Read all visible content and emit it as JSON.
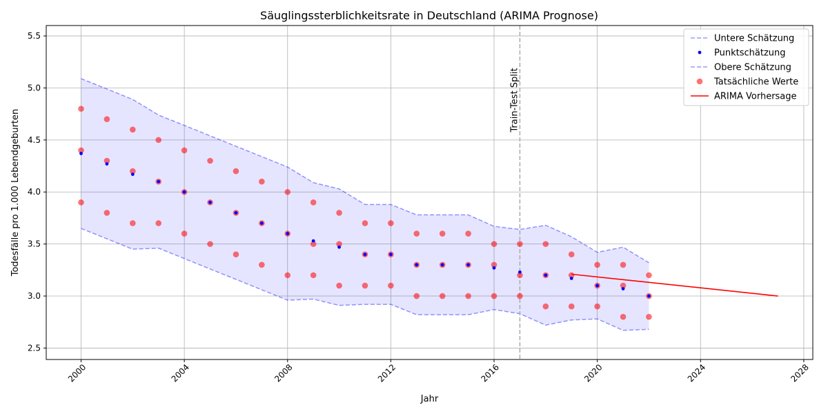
{
  "chart_data": {
    "type": "scatter",
    "title": "Säuglingssterblichkeitsrate in Deutschland (ARIMA Prognose)",
    "xlabel": "Jahr",
    "ylabel": "Todesfälle pro 1.000 Lebendgeburten",
    "xlim": [
      1998.65,
      2028.35
    ],
    "ylim": [
      2.39,
      5.6
    ],
    "xticks": [
      2000,
      2004,
      2008,
      2012,
      2016,
      2020,
      2024,
      2028
    ],
    "yticks": [
      2.5,
      3.0,
      3.5,
      4.0,
      4.5,
      5.0,
      5.5
    ],
    "ytick_labels": [
      "2.5",
      "3.0",
      "3.5",
      "4.0",
      "4.5",
      "5.0",
      "5.5"
    ],
    "grid": true,
    "legend_position": "top-right",
    "annotation": {
      "text": "Train-Test Split",
      "x": 2017
    },
    "colors": {
      "band": "#0000ff",
      "point": "#0000ff",
      "actual": "#ff0000",
      "forecast": "#ff0000",
      "split": "#aaaaaa",
      "grid": "#b0b0b0"
    },
    "series": [
      {
        "name": "Untere Schätzung",
        "kind": "dashed-line",
        "x": [
          2000,
          2001,
          2002,
          2003,
          2004,
          2005,
          2006,
          2007,
          2008,
          2009,
          2010,
          2011,
          2012,
          2013,
          2014,
          2015,
          2016,
          2017,
          2018,
          2019,
          2020,
          2021,
          2022
        ],
        "y": [
          3.65,
          3.55,
          3.45,
          3.46,
          3.36,
          3.26,
          3.16,
          3.06,
          2.96,
          2.97,
          2.91,
          2.92,
          2.92,
          2.82,
          2.82,
          2.82,
          2.87,
          2.83,
          2.72,
          2.77,
          2.78,
          2.67,
          2.68
        ]
      },
      {
        "name": "Punktschätzung",
        "kind": "point",
        "x": [
          2000,
          2001,
          2002,
          2003,
          2004,
          2005,
          2006,
          2007,
          2008,
          2009,
          2010,
          2011,
          2012,
          2013,
          2014,
          2015,
          2016,
          2017,
          2018,
          2019,
          2020,
          2021,
          2022
        ],
        "y": [
          4.37,
          4.27,
          4.17,
          4.1,
          4.0,
          3.9,
          3.8,
          3.7,
          3.6,
          3.53,
          3.47,
          3.4,
          3.4,
          3.3,
          3.3,
          3.3,
          3.27,
          3.23,
          3.2,
          3.17,
          3.1,
          3.07,
          3.0
        ]
      },
      {
        "name": "Obere Schätzung",
        "kind": "dashed-line",
        "x": [
          2000,
          2001,
          2002,
          2003,
          2004,
          2005,
          2006,
          2007,
          2008,
          2009,
          2010,
          2011,
          2012,
          2013,
          2014,
          2015,
          2016,
          2017,
          2018,
          2019,
          2020,
          2021,
          2022
        ],
        "y": [
          5.09,
          4.99,
          4.89,
          4.74,
          4.64,
          4.54,
          4.44,
          4.34,
          4.24,
          4.09,
          4.03,
          3.88,
          3.88,
          3.78,
          3.78,
          3.78,
          3.67,
          3.64,
          3.68,
          3.57,
          3.42,
          3.47,
          3.32
        ]
      },
      {
        "name": "Tatsächliche Werte",
        "kind": "scatter",
        "x": [
          2000,
          2000,
          2000,
          2001,
          2001,
          2001,
          2002,
          2002,
          2002,
          2003,
          2003,
          2003,
          2004,
          2004,
          2004,
          2005,
          2005,
          2005,
          2006,
          2006,
          2006,
          2007,
          2007,
          2007,
          2008,
          2008,
          2008,
          2009,
          2009,
          2009,
          2010,
          2010,
          2010,
          2011,
          2011,
          2011,
          2012,
          2012,
          2012,
          2013,
          2013,
          2013,
          2014,
          2014,
          2014,
          2015,
          2015,
          2015,
          2016,
          2016,
          2016,
          2017,
          2017,
          2017,
          2018,
          2018,
          2018,
          2019,
          2019,
          2019,
          2020,
          2020,
          2020,
          2021,
          2021,
          2021,
          2022,
          2022,
          2022
        ],
        "y": [
          4.8,
          4.4,
          3.9,
          4.7,
          4.3,
          3.8,
          4.6,
          4.2,
          3.7,
          4.5,
          4.1,
          3.7,
          4.4,
          4.0,
          3.6,
          4.3,
          3.9,
          3.5,
          4.2,
          3.8,
          3.4,
          4.1,
          3.7,
          3.3,
          4.0,
          3.6,
          3.2,
          3.9,
          3.5,
          3.2,
          3.8,
          3.5,
          3.1,
          3.7,
          3.4,
          3.1,
          3.7,
          3.4,
          3.1,
          3.6,
          3.3,
          3.0,
          3.6,
          3.3,
          3.0,
          3.6,
          3.3,
          3.0,
          3.5,
          3.3,
          3.0,
          3.5,
          3.2,
          3.0,
          3.5,
          3.2,
          2.9,
          3.4,
          3.2,
          2.9,
          3.3,
          3.1,
          2.9,
          3.3,
          3.1,
          2.8,
          3.2,
          3.0,
          2.8
        ]
      },
      {
        "name": "ARIMA Vorhersage",
        "kind": "line",
        "x": [
          2019,
          2027
        ],
        "y": [
          3.21,
          3.0
        ]
      }
    ]
  }
}
